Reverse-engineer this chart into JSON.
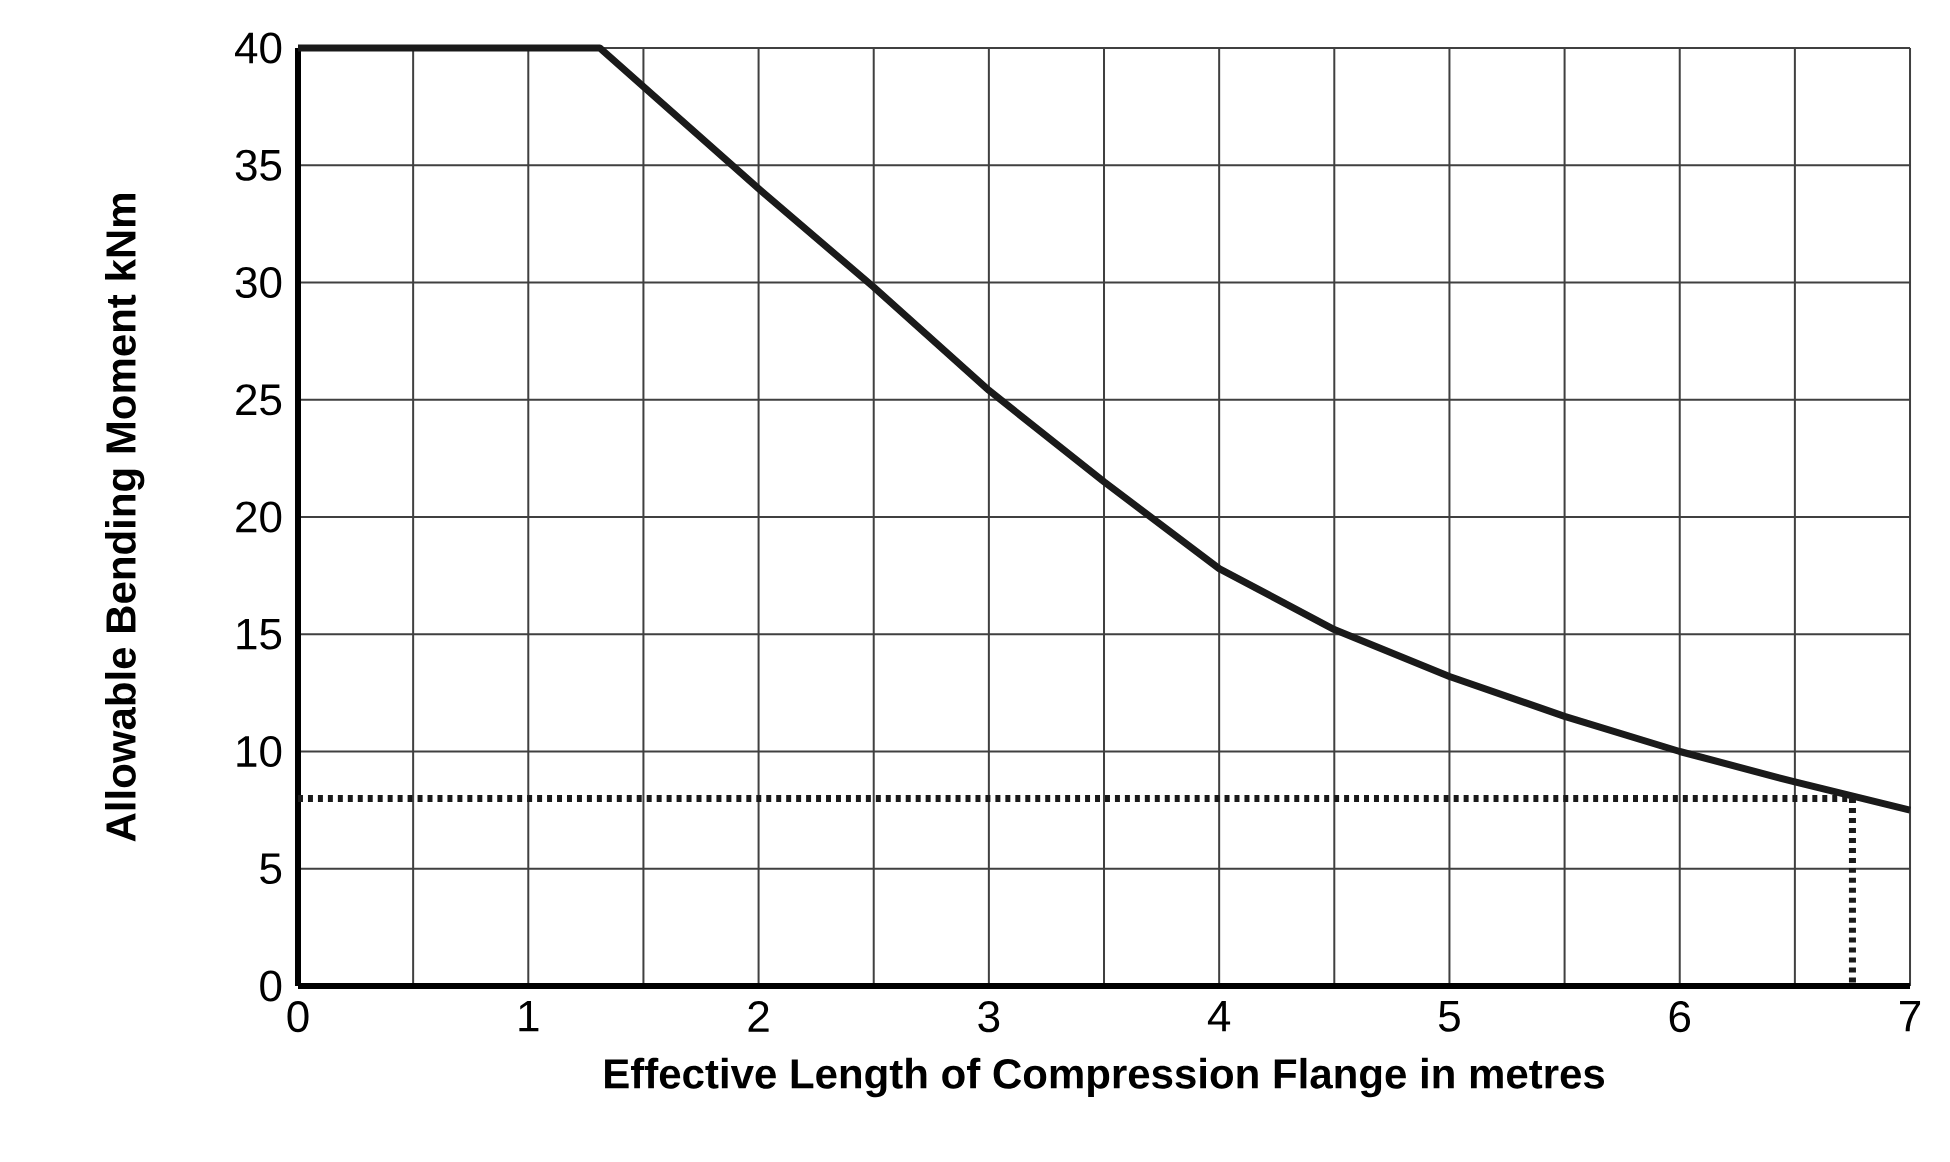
{
  "chart_data": {
    "type": "line",
    "xlabel": "Effective Length of Compression Flange in metres",
    "ylabel": "Allowable Bending Moment kNm",
    "xlim": [
      0,
      7
    ],
    "ylim": [
      0,
      40
    ],
    "xticks": [
      0,
      {
        "value": 0.5,
        "label": null
      },
      1,
      {
        "value": 1.5,
        "label": null
      },
      2,
      {
        "value": 2.5,
        "label": null
      },
      3,
      {
        "value": 3.5,
        "label": null
      },
      4,
      {
        "value": 4.5,
        "label": null
      },
      5,
      {
        "value": 5.5,
        "label": null
      },
      6,
      {
        "value": 6.5,
        "label": null
      },
      7
    ],
    "yticks": [
      0,
      5,
      10,
      15,
      20,
      25,
      30,
      35,
      40
    ],
    "grid": true,
    "marker": "none",
    "series": [
      {
        "color": "#1a1a1a",
        "line_style": "solid",
        "x": [
          0,
          1.31,
          2,
          2.5,
          3,
          3.5,
          4,
          4.5,
          5,
          5.5,
          6,
          6.5,
          7
        ],
        "values": [
          40,
          40,
          34,
          29.8,
          25.4,
          21.5,
          17.8,
          15.2,
          13.2,
          11.5,
          10,
          8.7,
          7.5
        ]
      },
      {
        "color": "#1a1a1a",
        "line_style": "dotted",
        "x": [
          0,
          6.75,
          6.75
        ],
        "values": [
          8,
          8,
          0
        ]
      }
    ]
  }
}
